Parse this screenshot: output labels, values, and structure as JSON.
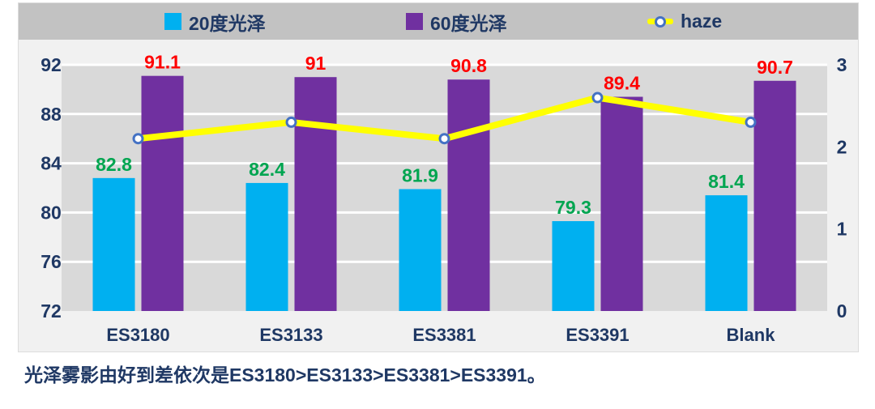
{
  "legend": {
    "items": [
      {
        "label": "20度光泽",
        "color": "#00b0f0",
        "type": "square"
      },
      {
        "label": "60度光泽",
        "color": "#7030a0",
        "type": "square"
      },
      {
        "label": "haze",
        "color": "#ffff00",
        "type": "line-marker",
        "marker_fill": "#ffffff",
        "marker_stroke": "#4472c4"
      }
    ]
  },
  "caption": "光泽雾影由好到差依次是ES3180>ES3133>ES3381>ES3391。",
  "chart_data": {
    "type": "bar+line combo",
    "categories": [
      "ES3180",
      "ES3133",
      "ES3381",
      "ES3391",
      "Blank"
    ],
    "series": [
      {
        "name": "20度光泽",
        "type": "bar",
        "axis": "left",
        "color": "#00b0f0",
        "label_color": "#00a550",
        "values": [
          82.8,
          82.4,
          81.9,
          79.3,
          81.4
        ],
        "labels": [
          "82.8",
          "82.4",
          "81.9",
          "79.3",
          "81.4"
        ]
      },
      {
        "name": "60度光泽",
        "type": "bar",
        "axis": "left",
        "color": "#7030a0",
        "label_color": "#ff0000",
        "values": [
          91.1,
          91,
          90.8,
          89.4,
          90.7
        ],
        "labels": [
          "91.1",
          "91",
          "90.8",
          "89.4",
          "90.7"
        ]
      },
      {
        "name": "haze",
        "type": "line",
        "axis": "right",
        "color": "#ffff00",
        "marker_fill": "#ffffff",
        "marker_stroke": "#4472c4",
        "values": [
          2.1,
          2.3,
          2.1,
          2.6,
          2.3
        ]
      }
    ],
    "left_axis": {
      "min": 72,
      "max": 92,
      "step": 4,
      "ticks": [
        "72",
        "76",
        "80",
        "84",
        "88",
        "92"
      ]
    },
    "right_axis": {
      "min": 0,
      "max": 3,
      "step": 1,
      "ticks": [
        "0",
        "1",
        "2",
        "3"
      ]
    },
    "grid": true,
    "legend_position": "top",
    "plot_bg": "#d9d9d9",
    "gridline_color": "#ffffff",
    "axis_text_color": "#1f3864"
  },
  "colors": {
    "page_bg": "#ffffff",
    "container_bg": "#f1f1f1",
    "legend_bg": "#c2c2c2",
    "text_navy": "#1f3864"
  }
}
